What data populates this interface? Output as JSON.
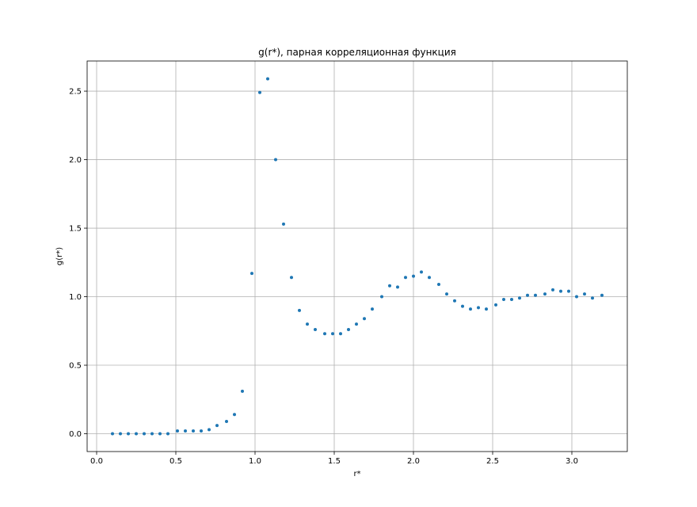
{
  "chart_data": {
    "type": "scatter",
    "title": "g(r*), парная корреляционная функция",
    "xlabel": "r*",
    "ylabel": "g(r*)",
    "xlim": [
      -0.06,
      3.35
    ],
    "ylim": [
      -0.13,
      2.72
    ],
    "xticks": [
      0.0,
      0.5,
      1.0,
      1.5,
      2.0,
      2.5,
      3.0
    ],
    "xtick_labels": [
      "0.0",
      "0.5",
      "1.0",
      "1.5",
      "2.0",
      "2.5",
      "3.0"
    ],
    "yticks": [
      0.0,
      0.5,
      1.0,
      1.5,
      2.0,
      2.5
    ],
    "ytick_labels": [
      "0.0",
      "0.5",
      "1.0",
      "1.5",
      "2.0",
      "2.5"
    ],
    "grid": true,
    "color": "#1f77b4",
    "x": [
      0.1,
      0.15,
      0.2,
      0.25,
      0.3,
      0.35,
      0.4,
      0.45,
      0.51,
      0.56,
      0.61,
      0.66,
      0.71,
      0.76,
      0.82,
      0.87,
      0.92,
      0.98,
      1.03,
      1.08,
      1.13,
      1.18,
      1.23,
      1.28,
      1.33,
      1.38,
      1.44,
      1.49,
      1.54,
      1.59,
      1.64,
      1.69,
      1.74,
      1.8,
      1.85,
      1.9,
      1.95,
      2.0,
      2.05,
      2.1,
      2.16,
      2.21,
      2.26,
      2.31,
      2.36,
      2.41,
      2.46,
      2.52,
      2.57,
      2.62,
      2.67,
      2.72,
      2.77,
      2.83,
      2.88,
      2.93,
      2.98,
      3.03,
      3.08,
      3.13,
      3.19
    ],
    "y": [
      0.0,
      0.0,
      0.0,
      0.0,
      0.0,
      0.0,
      0.0,
      0.0,
      0.02,
      0.02,
      0.02,
      0.02,
      0.03,
      0.06,
      0.09,
      0.14,
      0.31,
      1.17,
      2.49,
      2.59,
      2.0,
      1.53,
      1.14,
      0.9,
      0.8,
      0.76,
      0.73,
      0.73,
      0.73,
      0.76,
      0.8,
      0.84,
      0.91,
      1.0,
      1.08,
      1.07,
      1.14,
      1.15,
      1.18,
      1.14,
      1.09,
      1.02,
      0.97,
      0.93,
      0.91,
      0.92,
      0.91,
      0.94,
      0.98,
      0.98,
      0.99,
      1.01,
      1.01,
      1.02,
      1.05,
      1.04,
      1.04,
      1.0,
      1.02,
      0.99,
      1.01
    ]
  }
}
